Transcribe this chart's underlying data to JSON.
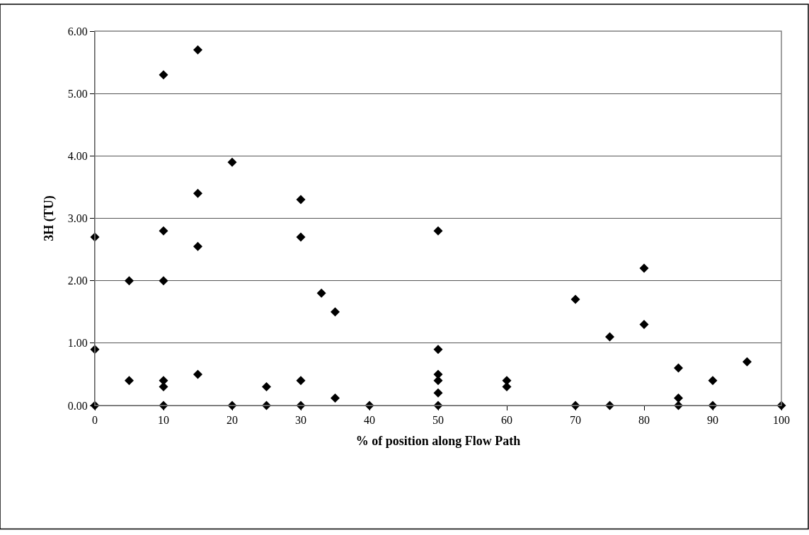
{
  "chart_data": {
    "type": "scatter",
    "xlabel": "% of position along Flow Path",
    "ylabel": "3H (TU)",
    "x": [
      0,
      0,
      0,
      5,
      5,
      10,
      10,
      10,
      10,
      10,
      10,
      15,
      15,
      15,
      15,
      20,
      20,
      25,
      25,
      30,
      30,
      30,
      30,
      33,
      35,
      35,
      40,
      50,
      50,
      50,
      50,
      50,
      50,
      60,
      60,
      70,
      70,
      75,
      75,
      80,
      80,
      85,
      85,
      85,
      90,
      90,
      95,
      100
    ],
    "series": [
      {
        "color": "#000000",
        "values": [
          2.7,
          0.9,
          0,
          2.0,
          0.4,
          5.3,
          2.8,
          2.0,
          0.4,
          0.3,
          0,
          5.7,
          3.4,
          2.55,
          0.5,
          3.9,
          0,
          0.3,
          0,
          3.3,
          2.7,
          0.4,
          0,
          1.8,
          1.5,
          0.12,
          0,
          2.8,
          0.9,
          0.5,
          0.4,
          0.2,
          0,
          0.4,
          0.3,
          1.7,
          0,
          1.1,
          0,
          2.2,
          1.3,
          0.6,
          0.12,
          0,
          0.4,
          0,
          0.7,
          0
        ]
      }
    ],
    "marker": "diamond",
    "xlim": [
      0,
      100
    ],
    "xticks": [
      0,
      10,
      20,
      30,
      40,
      50,
      60,
      70,
      80,
      90,
      100
    ],
    "ylim": [
      0,
      6
    ],
    "yticks": [
      {
        "value": 0,
        "label": "0.00"
      },
      {
        "value": 1,
        "label": "1.00"
      },
      {
        "value": 2,
        "label": "2.00"
      },
      {
        "value": 3,
        "label": "3.00"
      },
      {
        "value": 4,
        "label": "4.00"
      },
      {
        "value": 5,
        "label": "5.00"
      },
      {
        "value": 6,
        "label": "6.00"
      }
    ],
    "grid": "y",
    "legend": false
  }
}
